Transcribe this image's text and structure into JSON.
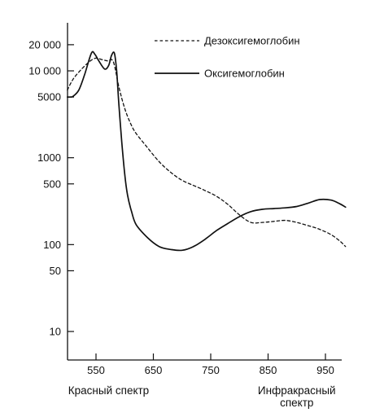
{
  "chart_data": {
    "type": "line",
    "title": "",
    "xlabel": "",
    "ylabel": "",
    "xlim": [
      500,
      985
    ],
    "ylim": [
      3,
      40000
    ],
    "y_scale": "log",
    "grid": false,
    "legend_placement": "top-right",
    "x_ticks": [
      550,
      650,
      750,
      850,
      950
    ],
    "y_ticks": [
      {
        "value": 20000,
        "label": "20 000"
      },
      {
        "value": 10000,
        "label": "10 000"
      },
      {
        "value": 5000,
        "label": "5000"
      },
      {
        "value": 1000,
        "label": "1000"
      },
      {
        "value": 500,
        "label": "500"
      },
      {
        "value": 100,
        "label": "100"
      },
      {
        "value": 50,
        "label": "50"
      },
      {
        "value": 10,
        "label": "10"
      }
    ],
    "region_labels": [
      {
        "text": "Красный спектр",
        "x": 572
      },
      {
        "text_lines": [
          "Инфракрасный",
          "спектр"
        ],
        "x": 900
      }
    ],
    "series": [
      {
        "name": "Дезоксигемоглобин",
        "style": "dashed",
        "x": [
          500,
          510,
          525,
          540,
          550,
          560,
          570,
          580,
          590,
          600,
          610,
          620,
          640,
          660,
          680,
          700,
          720,
          740,
          760,
          780,
          800,
          820,
          840,
          860,
          880,
          900,
          920,
          940,
          960,
          975,
          985
        ],
        "y": [
          6000,
          8000,
          10500,
          13000,
          14000,
          13500,
          13000,
          12800,
          6500,
          3700,
          2500,
          1900,
          1300,
          900,
          680,
          550,
          480,
          420,
          360,
          290,
          220,
          180,
          180,
          185,
          190,
          180,
          165,
          150,
          130,
          110,
          95
        ]
      },
      {
        "name": "Оксигемоглобин",
        "style": "solid",
        "x": [
          500,
          505,
          510,
          520,
          530,
          542,
          548,
          555,
          565,
          572,
          577,
          582,
          586,
          590,
          595,
          600,
          605,
          612,
          620,
          640,
          660,
          680,
          700,
          720,
          740,
          760,
          780,
          800,
          820,
          840,
          860,
          880,
          900,
          920,
          940,
          960,
          975,
          985
        ],
        "y": [
          5000,
          5000,
          5100,
          6000,
          9000,
          16000,
          15500,
          13000,
          10500,
          11500,
          15000,
          16000,
          10000,
          4000,
          1500,
          650,
          370,
          240,
          170,
          120,
          95,
          88,
          86,
          95,
          115,
          145,
          175,
          210,
          240,
          255,
          260,
          265,
          275,
          300,
          330,
          325,
          295,
          270
        ]
      }
    ]
  }
}
